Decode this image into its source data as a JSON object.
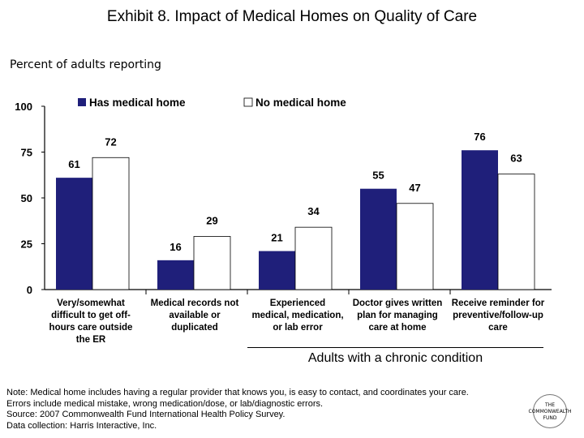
{
  "title": "Exhibit 8. Impact of Medical Homes on Quality of Care",
  "subtitle": "Percent of adults reporting",
  "group_label": "Adults with a chronic condition",
  "notes": [
    "Note: Medical home includes having a regular provider that knows you, is easy to contact, and coordinates your care.",
    "Errors include medical mistake, wrong medication/dose, or lab/diagnostic errors.",
    "Source: 2007 Commonwealth Fund International Health Policy Survey.",
    "Data collection: Harris Interactive, Inc."
  ],
  "logo": {
    "line1": "THE",
    "line2": "COMMONWEALTH",
    "line3": "FUND"
  },
  "colors": {
    "has_home": "#1f1f7a",
    "no_home": "#ffffff",
    "outline": "#000000"
  },
  "chart_data": {
    "type": "bar",
    "categories": [
      [
        "Very/somewhat",
        "difficult to get off-",
        "hours care outside",
        "the ER"
      ],
      [
        "Medical records not",
        "available or",
        "duplicated"
      ],
      [
        "Experienced",
        "medical, medication,",
        "or lab error"
      ],
      [
        "Doctor gives written",
        "plan for managing",
        "care at home"
      ],
      [
        "Receive reminder for",
        "preventive/follow-up",
        "care"
      ]
    ],
    "series": [
      {
        "name": "Has medical home",
        "values": [
          61,
          16,
          21,
          55,
          76
        ]
      },
      {
        "name": "No medical home",
        "values": [
          72,
          29,
          34,
          47,
          63
        ]
      }
    ],
    "yticks": [
      "0",
      "25",
      "50",
      "75",
      "100"
    ],
    "ylim": [
      0,
      100
    ],
    "legend_position": "top",
    "grid": false
  }
}
